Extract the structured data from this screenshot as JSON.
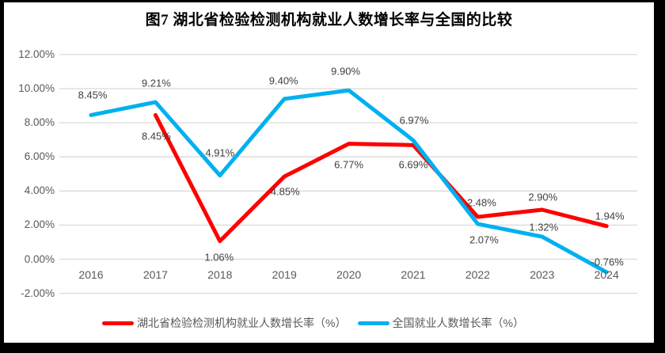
{
  "chart_data": {
    "type": "line",
    "title": "图7 湖北省检验检测机构就业人数增长率与全国的比较",
    "categories": [
      "2016",
      "2017",
      "2018",
      "2019",
      "2020",
      "2021",
      "2022",
      "2023",
      "2024"
    ],
    "series": [
      {
        "name": "湖北省检验检测机构就业人数增长率（%）",
        "color": "#ff0000",
        "values": [
          null,
          8.45,
          1.06,
          4.85,
          6.77,
          6.69,
          2.48,
          2.9,
          1.94
        ],
        "labels": [
          "",
          "8.45%",
          "1.06%",
          "4.85%",
          "6.77%",
          "6.69%",
          "2.48%",
          "2.90%",
          "1.94%"
        ],
        "label_offsets": [
          [
            0,
            0
          ],
          [
            1,
            27
          ],
          [
            -1,
            20
          ],
          [
            1,
            19
          ],
          [
            0,
            26
          ],
          [
            0,
            25
          ],
          [
            5,
            -18
          ],
          [
            1,
            -16
          ],
          [
            4,
            -13
          ]
        ]
      },
      {
        "name": "全国就业人数增长率（%）",
        "color": "#00b0f0",
        "values": [
          8.45,
          9.21,
          4.91,
          9.4,
          9.9,
          6.97,
          2.07,
          1.32,
          -0.76
        ],
        "labels": [
          "8.45%",
          "9.21%",
          "4.91%",
          "9.40%",
          "9.90%",
          "6.97%",
          "2.07%",
          "1.32%",
          "-0.76%"
        ],
        "label_offsets": [
          [
            2,
            -25
          ],
          [
            1,
            -24
          ],
          [
            0,
            -29
          ],
          [
            -1,
            -23
          ],
          [
            -4,
            -24
          ],
          [
            1,
            -25
          ],
          [
            8,
            20
          ],
          [
            2,
            -12
          ],
          [
            1,
            -13
          ]
        ]
      }
    ],
    "y_axis": {
      "min": -2,
      "max": 12,
      "ticks": [
        {
          "label": "12.00%",
          "value": 12
        },
        {
          "label": "10.00%",
          "value": 10
        },
        {
          "label": "8.00%",
          "value": 8
        },
        {
          "label": "6.00%",
          "value": 6
        },
        {
          "label": "4.00%",
          "value": 4
        },
        {
          "label": "2.00%",
          "value": 2
        },
        {
          "label": "0.00%",
          "value": 0
        },
        {
          "label": "-2.00%",
          "value": -2
        }
      ]
    },
    "grid": true,
    "legend_position": "bottom"
  }
}
